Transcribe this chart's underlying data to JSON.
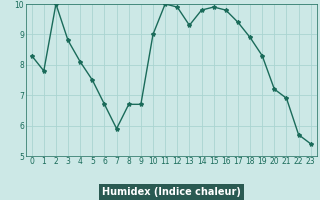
{
  "x": [
    0,
    1,
    2,
    3,
    4,
    5,
    6,
    7,
    8,
    9,
    10,
    11,
    12,
    13,
    14,
    15,
    16,
    17,
    18,
    19,
    20,
    21,
    22,
    23
  ],
  "y": [
    8.3,
    7.8,
    10.0,
    8.8,
    8.1,
    7.5,
    6.7,
    5.9,
    6.7,
    6.7,
    9.0,
    10.0,
    9.9,
    9.3,
    9.8,
    9.9,
    9.8,
    9.4,
    8.9,
    8.3,
    7.2,
    6.9,
    5.7,
    5.4
  ],
  "line_color": "#1a6b5a",
  "marker": "*",
  "marker_size": 3,
  "bg_color": "#cce8e6",
  "grid_color": "#aad4d1",
  "xlabel": "Humidex (Indice chaleur)",
  "xlabel_bg": "#2a5a52",
  "xlabel_fg": "#ffffff",
  "ylim": [
    5,
    10
  ],
  "xlim": [
    -0.5,
    23.5
  ],
  "yticks": [
    5,
    6,
    7,
    8,
    9,
    10
  ],
  "xticks": [
    0,
    1,
    2,
    3,
    4,
    5,
    6,
    7,
    8,
    9,
    10,
    11,
    12,
    13,
    14,
    15,
    16,
    17,
    18,
    19,
    20,
    21,
    22,
    23
  ],
  "tick_color": "#1a6b5a",
  "tick_fontsize": 5.5,
  "label_fontsize": 7.0,
  "line_width": 1.0
}
